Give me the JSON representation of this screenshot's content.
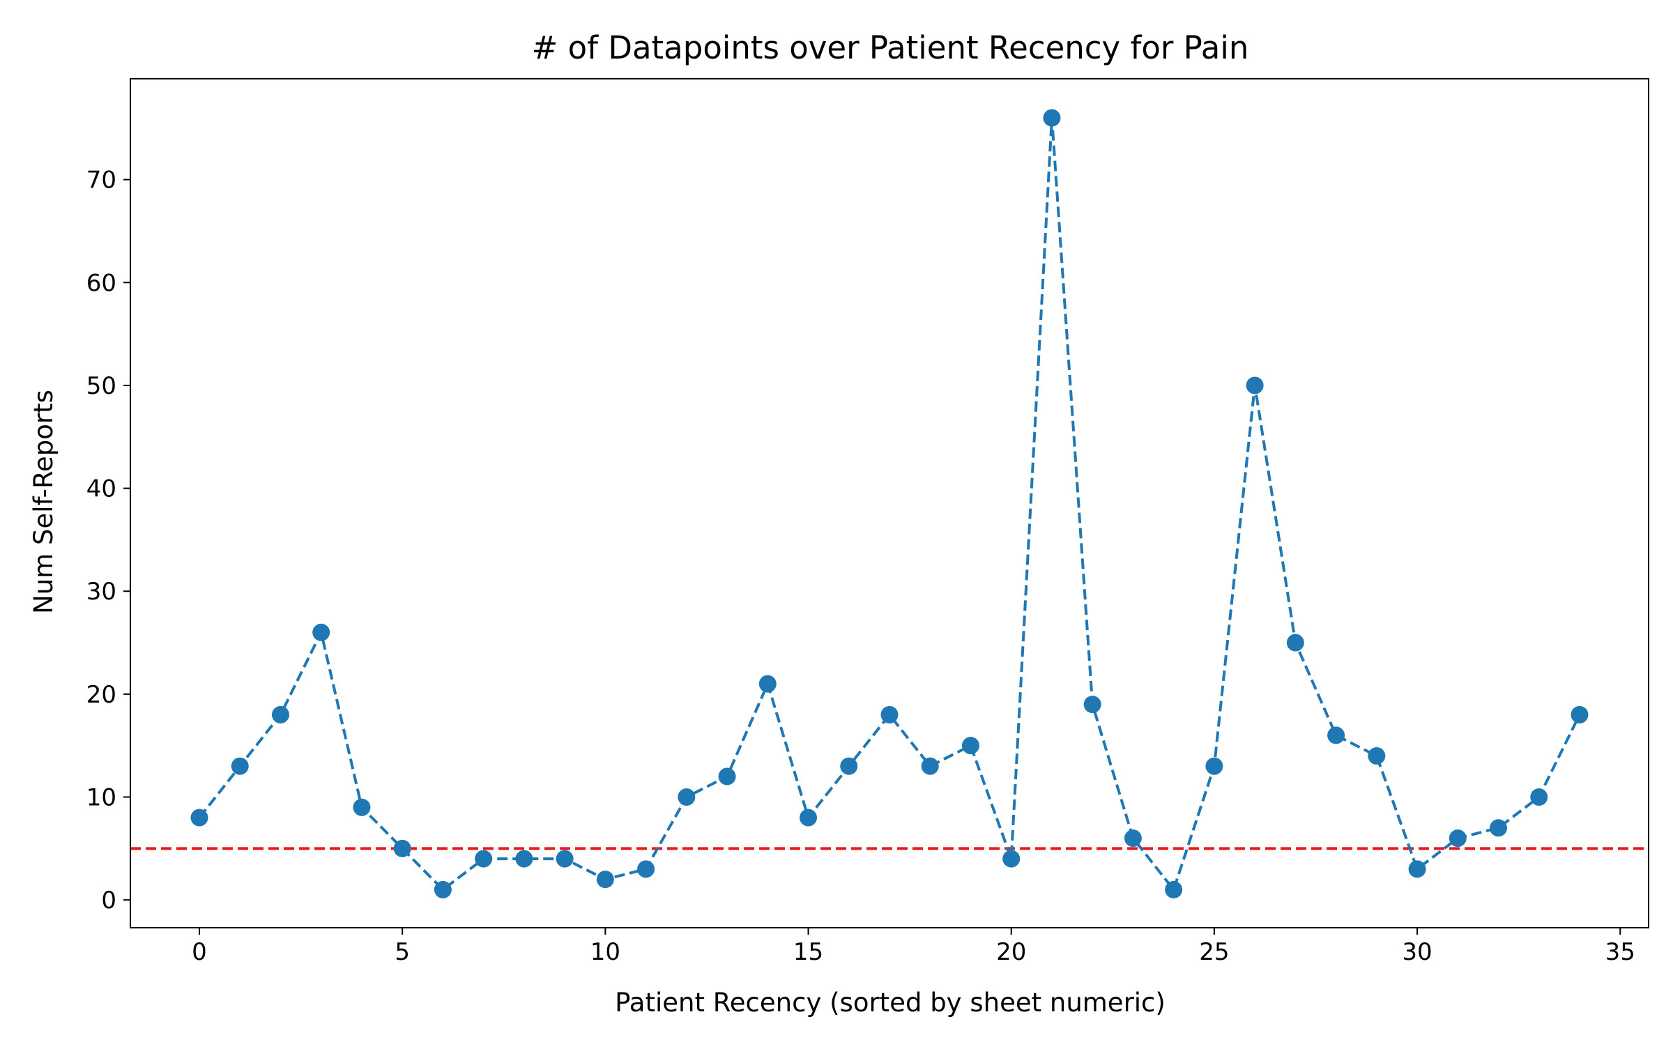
{
  "chart_data": {
    "type": "line",
    "title": "# of Datapoints over Patient Recency for Pain",
    "xlabel": "Patient Recency (sorted by sheet numeric)",
    "ylabel": "Num Self-Reports",
    "xlim": [
      -1.7,
      35.7
    ],
    "ylim": [
      -2.7,
      79.8
    ],
    "xticks": [
      0,
      5,
      10,
      15,
      20,
      25,
      30,
      35
    ],
    "yticks": [
      0,
      10,
      20,
      30,
      40,
      50,
      60,
      70
    ],
    "grid": false,
    "series": [
      {
        "x": [
          0,
          1,
          2,
          3,
          4,
          5,
          6,
          7,
          8,
          9,
          10,
          11,
          12,
          13,
          14,
          15,
          16,
          17,
          18,
          19,
          20,
          21,
          22,
          23,
          24,
          25,
          26,
          27,
          28,
          29,
          30,
          31,
          32,
          33,
          34
        ],
        "y": [
          8,
          13,
          18,
          26,
          9,
          5,
          1,
          4,
          4,
          4,
          2,
          3,
          10,
          12,
          21,
          8,
          13,
          18,
          13,
          15,
          4,
          76,
          19,
          6,
          1,
          13,
          50,
          25,
          16,
          14,
          3,
          6,
          7,
          10,
          18
        ],
        "color": "#1f77b4",
        "linestyle": "dashed",
        "marker": "circle"
      }
    ],
    "reference_line": {
      "y": 5,
      "color": "#e31a1c",
      "linestyle": "dashed"
    }
  }
}
